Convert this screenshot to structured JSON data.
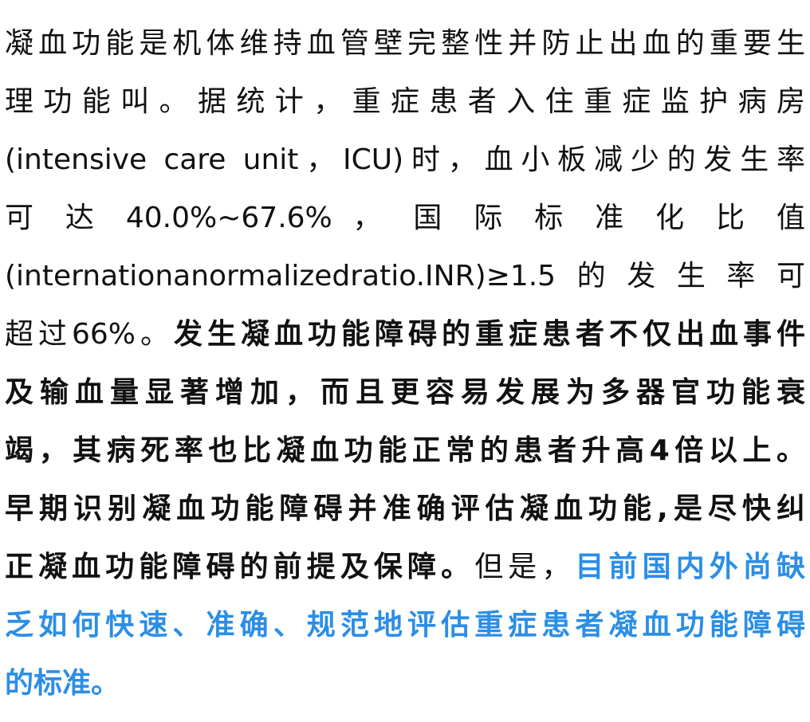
{
  "paragraph": {
    "l1": "凝血功能是机体维持血管壁完整性并防止出血的重要生",
    "l2": "理功能叫。据统计，重症患者入住重症监护病房",
    "l3": "(intensive care unit，ICU)时，血小板减少的发生率",
    "l4": "可 达 40.0%~67.6% ， 国 际 标 准 化 比 值",
    "l5": "(internationanormalizedratio.INR)≥1.5的发生率可",
    "l6_normal": "超过66%。",
    "l6_bold": "发生凝血功能障碍的重症患者不仅出血事件",
    "l7_bold": "及输血量显著增加，而且更容易发展为多器官功能衰",
    "l8_bold": "竭，其病死率也比凝血功能正常的患者升高4倍以上。",
    "l9_bold": "早期识别凝血功能障碍并准确评估凝血功能,是尽快纠",
    "l10_bold": "正凝血功能障碍的前提及保障。",
    "l10_normal": "但是，",
    "l10_blue": "目前国内外尚缺",
    "l11_blue": "乏如何快速、准确、规范地评估重症患者凝血功能障碍",
    "l12_blue": "的标准。"
  },
  "colors": {
    "text": "#111111",
    "highlight": "#2b8ee6",
    "background": "#ffffff"
  }
}
